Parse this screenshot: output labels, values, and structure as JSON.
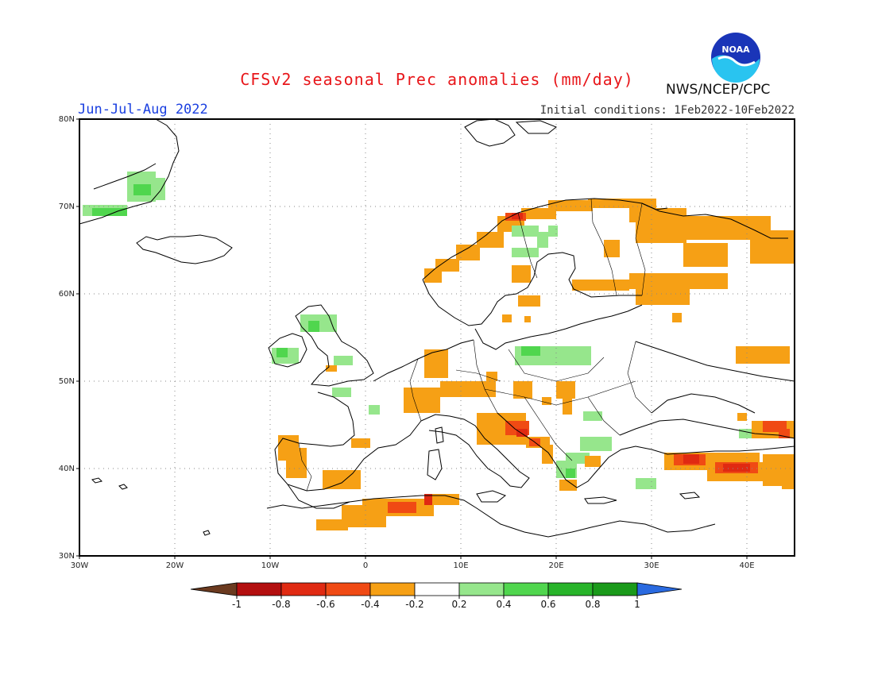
{
  "header": {
    "title": "CFSv2 seasonal Prec anomalies (mm/day)",
    "period": "Jun-Jul-Aug 2022",
    "initial_conditions": "Initial conditions: 1Feb2022-10Feb2022",
    "agency": "NWS/NCEP/CPC",
    "logo_text": "NOAA"
  },
  "map": {
    "lon_range": [
      -30,
      45
    ],
    "lat_range": [
      30,
      80
    ],
    "lat_ticks": [
      "80N",
      "70N",
      "60N",
      "50N",
      "40N",
      "30N"
    ],
    "lon_ticks": [
      "30W",
      "20W",
      "10W",
      "0",
      "10E",
      "20E",
      "30E",
      "40E"
    ]
  },
  "colorbar": {
    "labels": [
      "-1",
      "-0.8",
      "-0.6",
      "-0.4",
      "-0.2",
      "0.2",
      "0.4",
      "0.6",
      "0.8",
      "1"
    ],
    "colors": [
      "#6b3a1f",
      "#b30f0f",
      "#e02a12",
      "#f04a14",
      "#f6a015",
      "#ffffff",
      "#96e68c",
      "#50d64e",
      "#28b42a",
      "#1a9a1a",
      "#2a6ae0"
    ]
  }
}
